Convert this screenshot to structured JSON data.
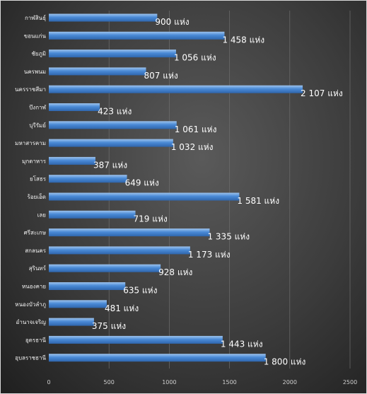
{
  "chart_data": {
    "type": "bar",
    "orientation": "horizontal",
    "categories": [
      "กาฬสินธุ์",
      "ขอนแก่น",
      "ชัยภูมิ",
      "นครพนม",
      "นครราชสีมา",
      "บึงกาฬ",
      "บุรีรัมย์",
      "มหาสารคาม",
      "มุกดาหาร",
      "ยโสธร",
      "ร้อยเอ็ด",
      "เลย",
      "ศรีสะเกษ",
      "สกลนคร",
      "สุรินทร์",
      "หนองคาย",
      "หนองบัวลำภู",
      "อำนาจเจริญ",
      "อุดรธานี",
      "อุบลราชธานี"
    ],
    "values": [
      900,
      1458,
      1056,
      807,
      2107,
      423,
      1061,
      1032,
      387,
      649,
      1581,
      719,
      1335,
      1173,
      928,
      635,
      481,
      375,
      1443,
      1800
    ],
    "value_labels": [
      "900 แห่ง",
      "1 458 แห่ง",
      "1 056 แห่ง",
      "807 แห่ง",
      "2 107 แห่ง",
      "423 แห่ง",
      "1 061 แห่ง",
      "1 032 แห่ง",
      "387 แห่ง",
      "649 แห่ง",
      "1 581 แห่ง",
      "719 แห่ง",
      "1 335 แห่ง",
      "1 173 แห่ง",
      "928 แห่ง",
      "635 แห่ง",
      "481 แห่ง",
      "375 แห่ง",
      "1 443 แห่ง",
      "1 800 แห่ง"
    ],
    "xticks": [
      "0",
      "500",
      "1000",
      "1500",
      "2000",
      "2500"
    ],
    "xlim": [
      0,
      2500
    ],
    "title": "",
    "xlabel": "",
    "ylabel": "",
    "grid": "vertical",
    "legend": "none",
    "colors": {
      "bar_top": "#9dc3ee",
      "bar_mid": "#4a8ad6",
      "bar_bottom": "#2f66ad",
      "background_center": "#5a5a5a",
      "background_edge": "#1f1f1f",
      "gridline": "#6e6e6e",
      "text": "#ffffff"
    }
  }
}
